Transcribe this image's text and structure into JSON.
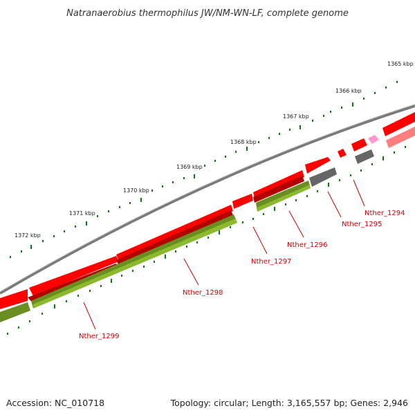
{
  "title": "Natranaerobius thermophilus JW/NM-WN-LF, complete genome",
  "footer": {
    "accession": "Accession: NC_010718",
    "topology": "Topology: circular; Length: 3,165,557 bp; Genes: 2,946"
  },
  "colors": {
    "backbone": "#7a7a7a",
    "cds_red": "#ff0000",
    "cds_green": "#6b8e23",
    "cds_gray": "#666666",
    "cds_pink": "#ff99cc",
    "cds_salmon": "#ff7f7f",
    "tick_green": "#0a7a0a",
    "label_red": "#cc0000"
  },
  "kbp_labels": [
    "1365 kbp",
    "1366 kbp",
    "1367 kbp",
    "1368 kbp",
    "1369 kbp",
    "1370 kbp",
    "1371 kbp",
    "1372 kbp"
  ],
  "gene_labels": [
    "Nther_1294",
    "Nther_1295",
    "Nther_1296",
    "Nther_1297",
    "Nther_1298",
    "Nther_1299"
  ]
}
